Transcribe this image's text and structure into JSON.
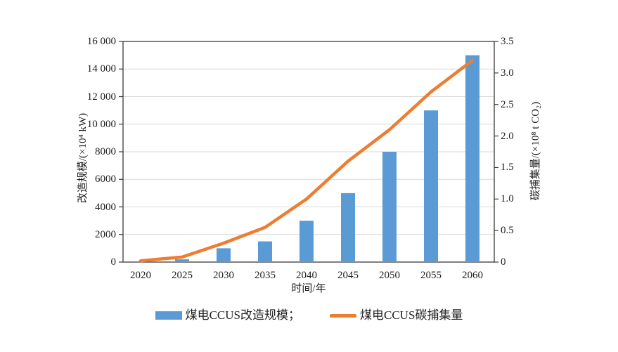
{
  "page": {
    "background": "#ffffff",
    "text_color": "#1f1f1f",
    "frame_color": "#3a3a3a",
    "grid_color": "#d9d9d9"
  },
  "chart_data": {
    "type": "combo-bar-line",
    "categories": [
      "2020",
      "2025",
      "2030",
      "2035",
      "2040",
      "2045",
      "2050",
      "2055",
      "2060"
    ],
    "series": [
      {
        "name": "煤电CCUS改造规模",
        "type": "bar",
        "axis": "left",
        "color": "#5b9bd5",
        "values": [
          0,
          200,
          1000,
          1500,
          3000,
          5000,
          8000,
          11000,
          15000
        ]
      },
      {
        "name": "煤电CCUS碳捕集量",
        "type": "line",
        "axis": "right",
        "color": "#ed7d31",
        "values": [
          0.02,
          0.08,
          0.3,
          0.55,
          1.0,
          1.6,
          2.1,
          2.7,
          3.2
        ]
      }
    ],
    "left_axis": {
      "label": "改造规模/(×10⁴ kW)",
      "min": 0,
      "max": 16000,
      "step": 2000,
      "tick_labels": [
        "0",
        "2000",
        "4000",
        "6000",
        "8000",
        "10 000",
        "12 000",
        "14 000",
        "16 000"
      ]
    },
    "right_axis": {
      "label": "碳捕集量/(×10⁸ t CO₂)",
      "min": 0,
      "max": 3.5,
      "step": 0.5,
      "tick_labels": [
        "0",
        "0.5",
        "1.0",
        "1.5",
        "2.0",
        "2.5",
        "3.0",
        "3.5"
      ]
    },
    "x_axis": {
      "label": "时间/年"
    },
    "legend": [
      {
        "label": "煤电CCUS改造规模；",
        "swatch": "bar"
      },
      {
        "label": "煤电CCUS碳捕集量",
        "swatch": "line"
      }
    ],
    "grid": true,
    "legend_position": "bottom-center"
  }
}
